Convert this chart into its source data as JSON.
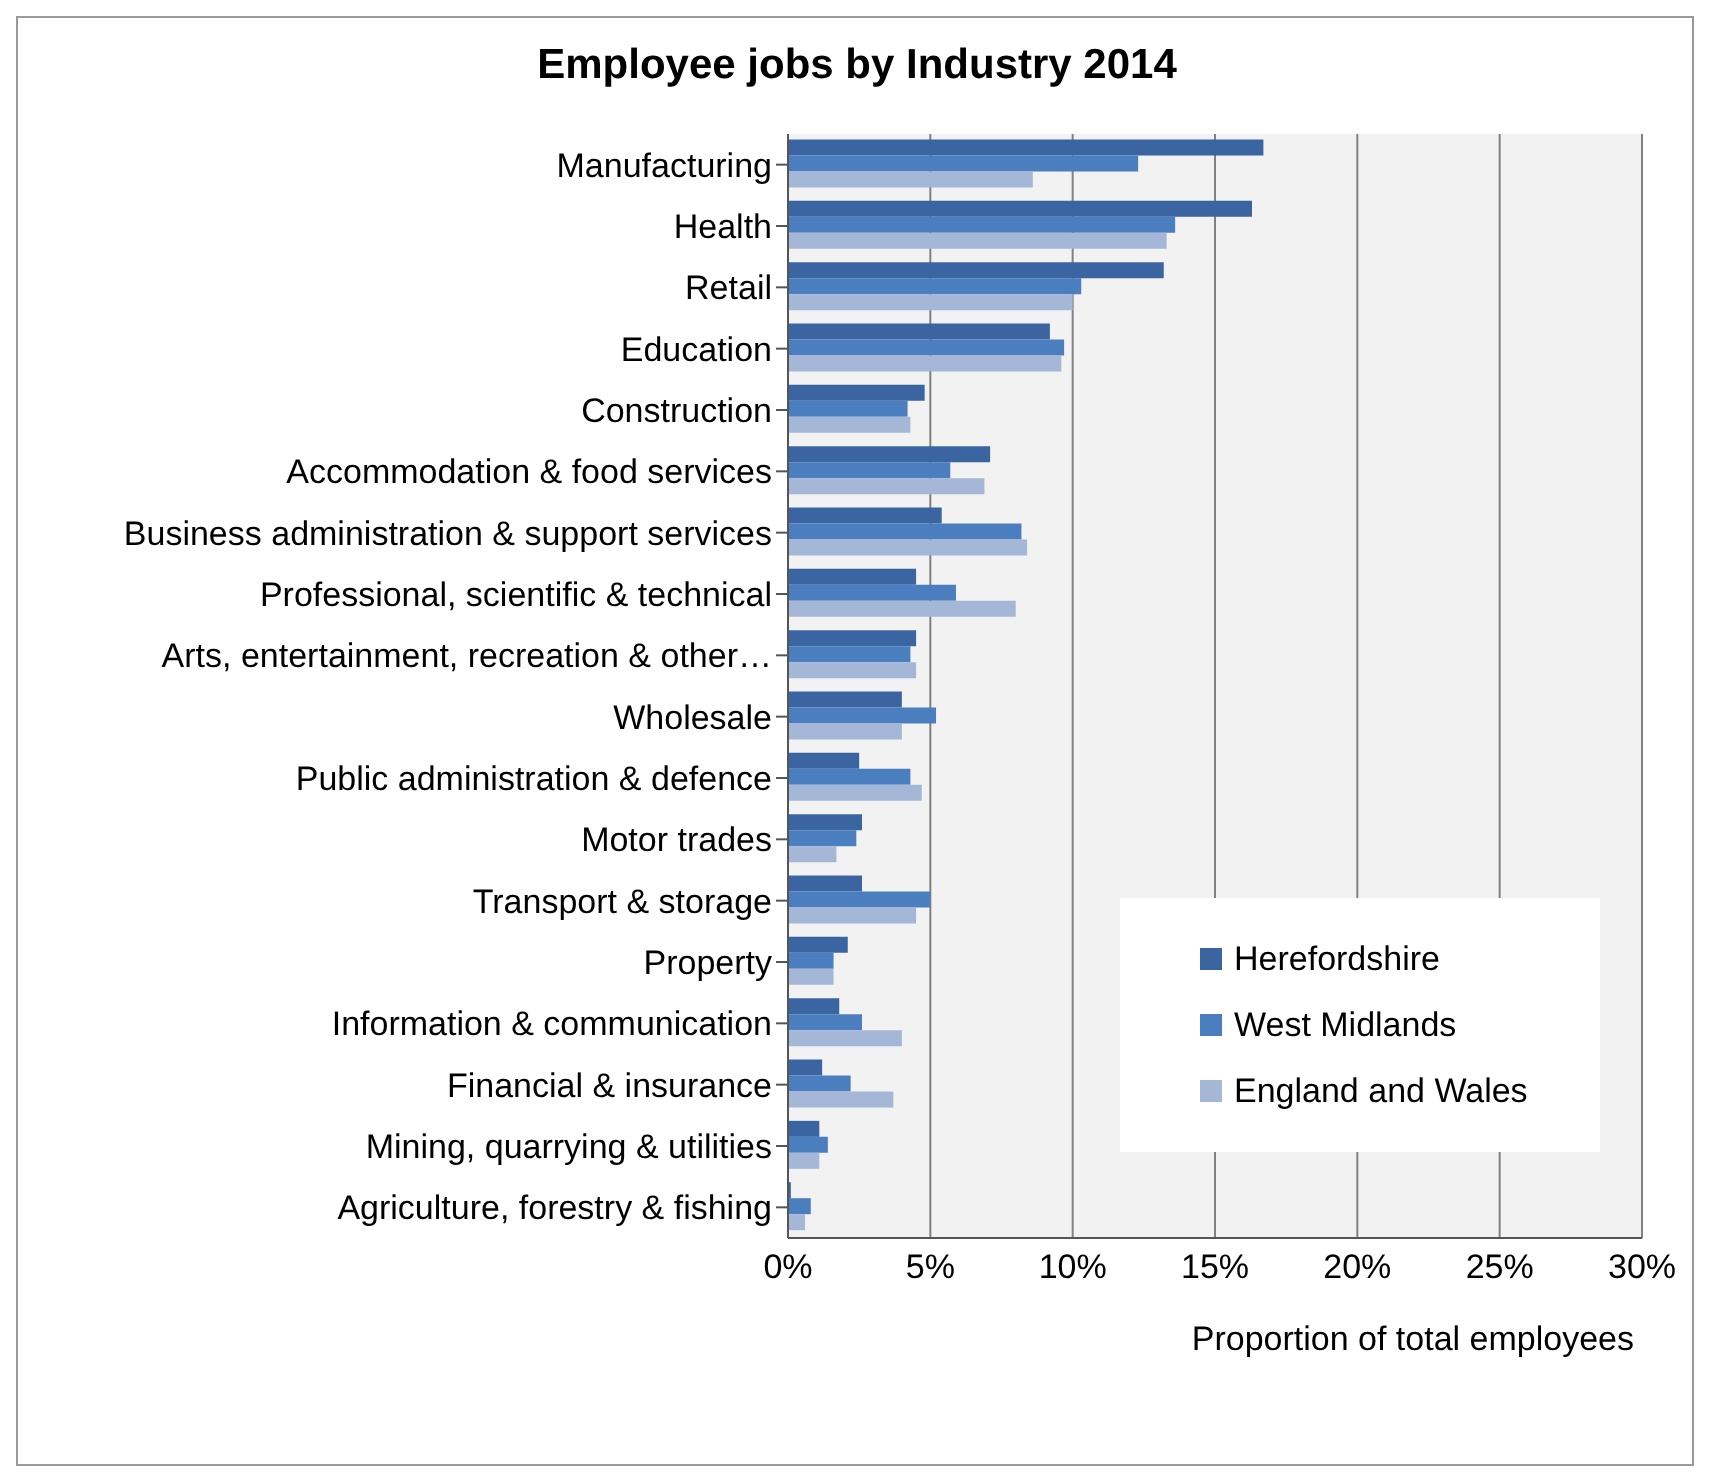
{
  "chart_data": {
    "type": "bar",
    "orientation": "horizontal",
    "title": "Employee jobs by Industry 2014",
    "xlabel": "Proportion of total employees",
    "categories": [
      "Manufacturing",
      "Health",
      "Retail",
      "Education",
      "Construction",
      "Accommodation & food services",
      "Business administration & support services",
      "Professional, scientific & technical",
      "Arts, entertainment, recreation & other…",
      "Wholesale",
      "Public administration & defence",
      "Motor trades",
      "Transport & storage",
      "Property",
      "Information & communication",
      "Financial & insurance",
      "Mining, quarrying & utilities",
      "Agriculture, forestry & fishing"
    ],
    "series": [
      {
        "name": "Herefordshire",
        "color": "#3a65a0",
        "values": [
          16.7,
          16.3,
          13.2,
          9.2,
          4.8,
          7.1,
          5.4,
          4.5,
          4.5,
          4.0,
          2.5,
          2.6,
          2.6,
          2.1,
          1.8,
          1.2,
          1.1,
          0.1
        ]
      },
      {
        "name": "West Midlands",
        "color": "#4a7ebf",
        "values": [
          12.3,
          13.6,
          10.3,
          9.7,
          4.2,
          5.7,
          8.2,
          5.9,
          4.3,
          5.2,
          4.3,
          2.4,
          5.0,
          1.6,
          2.6,
          2.2,
          1.4,
          0.8
        ]
      },
      {
        "name": "England and Wales",
        "color": "#a5b7d6",
        "values": [
          8.6,
          13.3,
          10.0,
          9.6,
          4.3,
          6.9,
          8.4,
          8.0,
          4.5,
          4.0,
          4.7,
          1.7,
          4.5,
          1.6,
          4.0,
          3.7,
          1.1,
          0.6
        ]
      }
    ],
    "xlim": [
      0,
      30
    ],
    "xticks": [
      {
        "value": 0,
        "label": "0%"
      },
      {
        "value": 5,
        "label": "5%"
      },
      {
        "value": 10,
        "label": "10%"
      },
      {
        "value": 15,
        "label": "15%"
      },
      {
        "value": 20,
        "label": "20%"
      },
      {
        "value": 25,
        "label": "25%"
      },
      {
        "value": 30,
        "label": "30%"
      }
    ],
    "grid": "x",
    "legend": "bottom right"
  }
}
